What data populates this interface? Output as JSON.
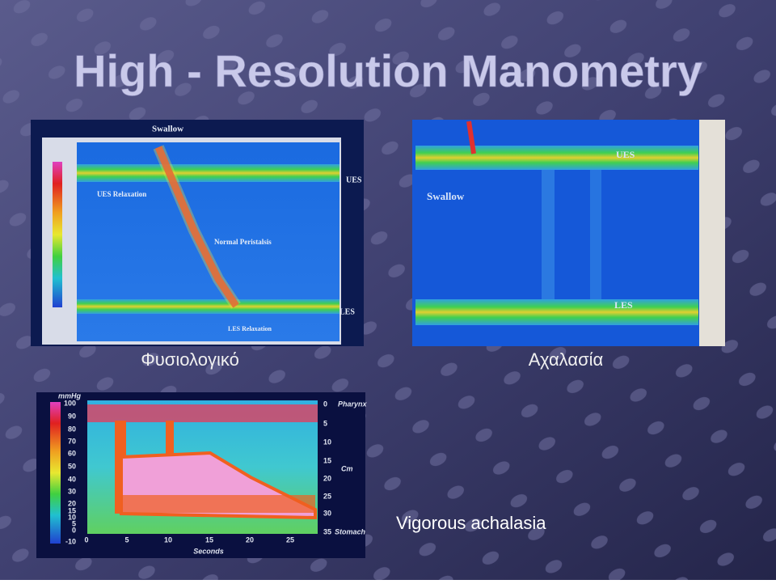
{
  "title": "High - Resolution Manometry",
  "panels": [
    {
      "caption": "Φυσιολογικό",
      "labels": [
        "Swallow",
        "UES Relaxation",
        "Normal Peristalsis",
        "UES",
        "LES",
        "LES Relaxation"
      ]
    },
    {
      "caption": "Αχαλασία",
      "labels": [
        "Swallow",
        "UES",
        "LES"
      ]
    },
    {
      "caption": "Vigorous achalasia",
      "pressure_unit": "mmHg",
      "pressure_ticks": [
        100,
        90,
        80,
        70,
        60,
        50,
        40,
        30,
        20,
        15,
        10,
        5,
        0,
        -10
      ],
      "depth_ticks": [
        0,
        5,
        10,
        15,
        20,
        25,
        30,
        35
      ],
      "depth_labels": [
        "Pharynx",
        "Cm",
        "Stomach"
      ],
      "time_ticks": [
        0,
        5,
        10,
        15,
        20,
        25
      ],
      "time_label": "Seconds"
    }
  ]
}
